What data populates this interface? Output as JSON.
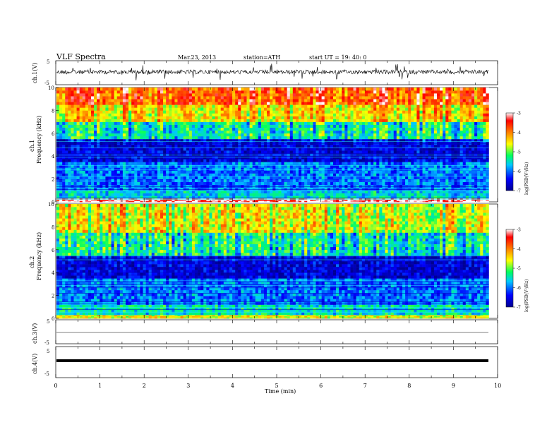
{
  "header": {
    "title": "VLF  Spectra",
    "date": "Mar.23, 2013",
    "station": "station=ATH",
    "start": "start  UT  =   19: 40: 0"
  },
  "chart_data": [
    {
      "type": "line",
      "panel": "ch1-waveform",
      "ylabel": "ch.1(V)",
      "yticks": [
        "5",
        "-5"
      ],
      "ylim": [
        -5,
        5
      ],
      "xlim": [
        0,
        10
      ],
      "series": [
        {
          "values_description": "noisy waveform around 0 V with impulsive spikes",
          "baseline": 0
        }
      ]
    },
    {
      "type": "heatmap",
      "panel": "ch1-spectrogram",
      "ylabel_top": "ch.1",
      "ylabel": "Frequency  (kHz)",
      "yticks": [
        "0",
        "2",
        "4",
        "6",
        "8",
        "10"
      ],
      "ylim": [
        0,
        10
      ],
      "xlim": [
        0,
        9.8
      ],
      "colorbar": {
        "label": "log(PSD(V²/Hz)",
        "ticks": [
          "-3",
          "-4",
          "-5",
          "-6",
          "-7"
        ],
        "range": [
          -7,
          -3
        ]
      },
      "bands": [
        {
          "f_low": 0,
          "f_high": 0.3,
          "logpsd": -3.1
        },
        {
          "f_low": 0.3,
          "f_high": 1.0,
          "logpsd": -5.6
        },
        {
          "f_low": 1.0,
          "f_high": 3.5,
          "logpsd": -6.0
        },
        {
          "f_low": 3.5,
          "f_high": 5.5,
          "logpsd": -6.6
        },
        {
          "f_low": 5.5,
          "f_high": 7.0,
          "logpsd": -5.4
        },
        {
          "f_low": 7.0,
          "f_high": 8.5,
          "logpsd": -4.4
        },
        {
          "f_low": 8.5,
          "f_high": 10,
          "logpsd": -3.8
        }
      ]
    },
    {
      "type": "heatmap",
      "panel": "ch2-spectrogram",
      "ylabel_top": "ch.2",
      "ylabel": "Frequency  (kHz)",
      "yticks": [
        "0",
        "2",
        "4",
        "6",
        "8",
        "10"
      ],
      "ylim": [
        0,
        10
      ],
      "xlim": [
        0,
        9.8
      ],
      "colorbar": {
        "label": "log(PSD(V²/Hz)",
        "ticks": [
          "-3",
          "-4",
          "-5",
          "-6",
          "-7"
        ],
        "range": [
          -7,
          -3
        ]
      },
      "bands": [
        {
          "f_low": 0,
          "f_high": 0.3,
          "logpsd": -4.6
        },
        {
          "f_low": 0.3,
          "f_high": 1.2,
          "logpsd": -5.5
        },
        {
          "f_low": 1.2,
          "f_high": 3.5,
          "logpsd": -6.0
        },
        {
          "f_low": 3.5,
          "f_high": 5.5,
          "logpsd": -6.6
        },
        {
          "f_low": 5.5,
          "f_high": 7.5,
          "logpsd": -5.4
        },
        {
          "f_low": 7.5,
          "f_high": 10,
          "logpsd": -4.6
        }
      ]
    },
    {
      "type": "line",
      "panel": "ch3-waveform",
      "ylabel": "ch.3(V)",
      "yticks": [
        "5",
        "-5"
      ],
      "ylim": [
        -5,
        5
      ],
      "xlim": [
        0,
        10
      ],
      "series": [
        {
          "values_description": "flat line near 0 V",
          "baseline": 0
        }
      ]
    },
    {
      "type": "line",
      "panel": "ch4-waveform",
      "ylabel": "ch.4(V)",
      "yticks": [
        "5",
        "-5"
      ],
      "ylim": [
        -5,
        5
      ],
      "xlim": [
        0,
        10
      ],
      "xlabel": "Time  (min)",
      "xticks": [
        "0",
        "1",
        "2",
        "3",
        "4",
        "5",
        "6",
        "7",
        "8",
        "9",
        "10"
      ],
      "series": [
        {
          "values_description": "thick flat trace near 0 V",
          "baseline": 0
        }
      ]
    }
  ]
}
